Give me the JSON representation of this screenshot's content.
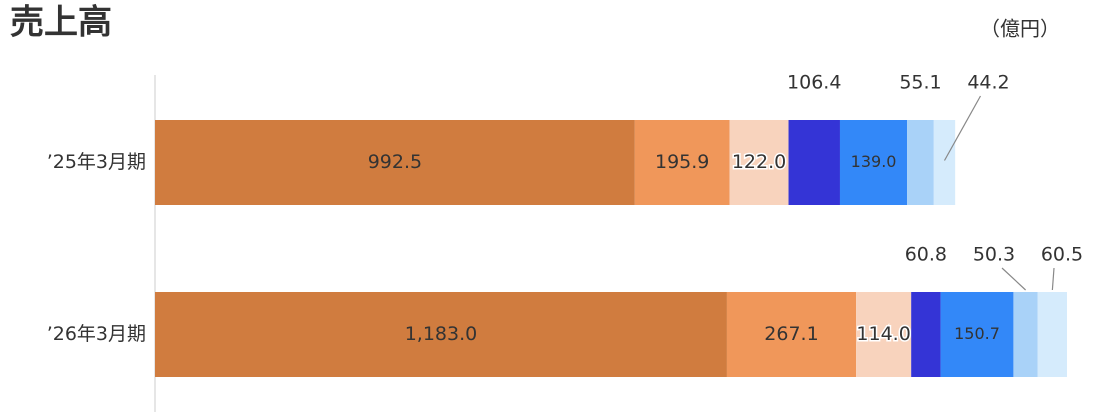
{
  "chart_data": {
    "type": "stacked-barh",
    "title": "売上高",
    "unit": "（億円）",
    "categories": [
      "’25年3月期",
      "’26年3月期"
    ],
    "series": [
      {
        "color": "#d07c3f",
        "values": [
          992.5,
          1183.0
        ],
        "value_labels": [
          "992.5",
          "1,183.0"
        ]
      },
      {
        "color": "#f0975a",
        "values": [
          195.9,
          267.1
        ],
        "value_labels": [
          "195.9",
          "267.1"
        ]
      },
      {
        "color": "#f8d3bd",
        "values": [
          122.0,
          114.0
        ],
        "value_labels": [
          "122.0",
          "114.0"
        ]
      },
      {
        "color": "#3434d6",
        "values": [
          106.4,
          60.8
        ],
        "value_labels": [
          "106.4",
          "60.8"
        ]
      },
      {
        "color": "#3388f8",
        "values": [
          139.0,
          150.7
        ],
        "value_labels": [
          "139.0",
          "150.7"
        ]
      },
      {
        "color": "#a9d2f8",
        "values": [
          55.1,
          50.3
        ],
        "value_labels": [
          "55.1",
          "50.3"
        ]
      },
      {
        "color": "#d5ebfc",
        "values": [
          44.2,
          60.5
        ],
        "value_labels": [
          "44.2",
          "60.5"
        ]
      }
    ]
  }
}
